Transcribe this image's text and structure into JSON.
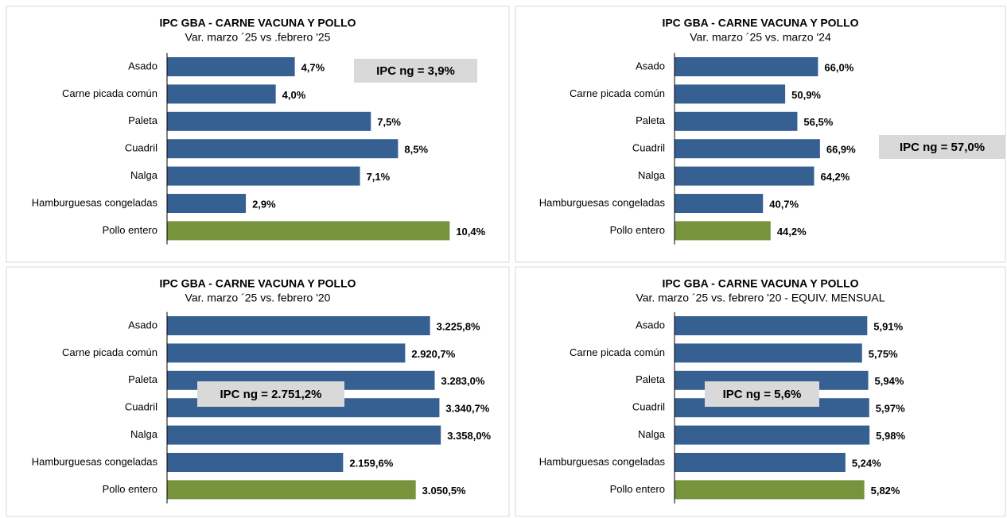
{
  "chart_data": [
    {
      "type": "bar",
      "orientation": "horizontal",
      "title": "IPC GBA - CARNE VACUNA Y POLLO",
      "subtitle": "Var. marzo ´25 vs .febrero '25",
      "categories": [
        "Asado",
        "Carne picada común",
        "Paleta",
        "Cuadril",
        "Nalga",
        "Hamburguesas congeladas",
        "Pollo entero"
      ],
      "values": [
        4.7,
        4.0,
        7.5,
        8.5,
        7.1,
        2.9,
        10.4
      ],
      "value_labels": [
        "4,7%",
        "4,0%",
        "7,5%",
        "8,5%",
        "7,1%",
        "2,9%",
        "10,4%"
      ],
      "colors": [
        "#376092",
        "#376092",
        "#376092",
        "#376092",
        "#376092",
        "#376092",
        "#77933c"
      ],
      "xlim": [
        0,
        12
      ],
      "annotation": "IPC ng = 3,9%"
    },
    {
      "type": "bar",
      "orientation": "horizontal",
      "title": "IPC GBA - CARNE VACUNA Y POLLO",
      "subtitle": "Var. marzo ´25 vs. marzo '24",
      "categories": [
        "Asado",
        "Carne picada común",
        "Paleta",
        "Cuadril",
        "Nalga",
        "Hamburguesas congeladas",
        "Pollo entero"
      ],
      "values": [
        66.0,
        50.9,
        56.5,
        66.9,
        64.2,
        40.7,
        44.2
      ],
      "value_labels": [
        "66,0%",
        "50,9%",
        "56,5%",
        "66,9%",
        "64,2%",
        "40,7%",
        "44,2%"
      ],
      "colors": [
        "#376092",
        "#376092",
        "#376092",
        "#376092",
        "#376092",
        "#376092",
        "#77933c"
      ],
      "xlim": [
        0,
        150
      ],
      "annotation": "IPC ng = 57,0%"
    },
    {
      "type": "bar",
      "orientation": "horizontal",
      "title": "IPC GBA - CARNE VACUNA Y POLLO",
      "subtitle": "Var. marzo ´25 vs. febrero '20",
      "categories": [
        "Asado",
        "Carne picada común",
        "Paleta",
        "Cuadril",
        "Nalga",
        "Hamburguesas congeladas",
        "Pollo entero"
      ],
      "values": [
        3225.8,
        2920.7,
        3283.0,
        3340.7,
        3358.0,
        2159.6,
        3050.5
      ],
      "value_labels": [
        "3.225,8%",
        "2.920,7%",
        "3.283,0%",
        "3.340,7%",
        "3.358,0%",
        "2.159,6%",
        "3.050,5%"
      ],
      "colors": [
        "#376092",
        "#376092",
        "#376092",
        "#376092",
        "#376092",
        "#376092",
        "#77933c"
      ],
      "xlim": [
        0,
        4000
      ],
      "annotation": "IPC ng = 2.751,2%"
    },
    {
      "type": "bar",
      "orientation": "horizontal",
      "title": "IPC GBA - CARNE VACUNA Y POLLO",
      "subtitle": "Var. marzo ´25 vs. febrero '20 - EQUIV. MENSUAL",
      "categories": [
        "Asado",
        "Carne picada común",
        "Paleta",
        "Cuadril",
        "Nalga",
        "Hamburguesas congeladas",
        "Pollo entero"
      ],
      "values": [
        5.91,
        5.75,
        5.94,
        5.97,
        5.98,
        5.24,
        5.82
      ],
      "value_labels": [
        "5,91%",
        "5,75%",
        "5,94%",
        "5,97%",
        "5,98%",
        "5,24%",
        "5,82%"
      ],
      "colors": [
        "#376092",
        "#376092",
        "#376092",
        "#376092",
        "#376092",
        "#376092",
        "#77933c"
      ],
      "xlim": [
        0,
        10
      ],
      "annotation": "IPC ng = 5,6%"
    }
  ]
}
